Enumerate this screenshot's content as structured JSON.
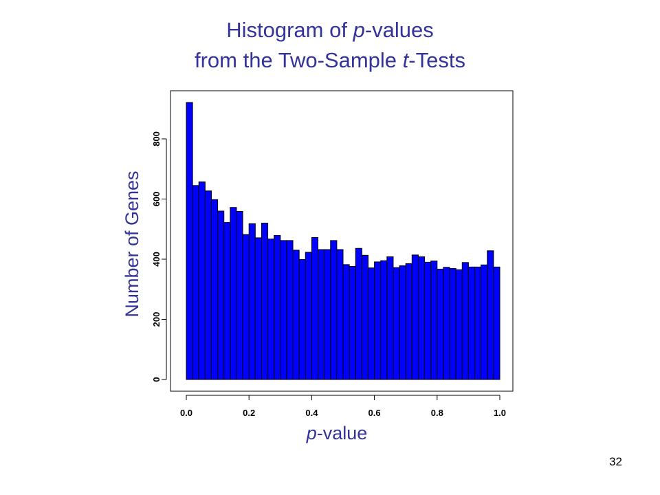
{
  "slide": {
    "title_part1_prefix": "Histogram of ",
    "title_part1_italic": "p",
    "title_part1_suffix": "-values",
    "title_part2_prefix": "from the Two-Sample ",
    "title_part2_italic": "t",
    "title_part2_suffix": "-Tests",
    "xlabel_italic": "p",
    "xlabel_suffix": "-value",
    "ylabel": "Number of Genes",
    "page_number": "32"
  },
  "colors": {
    "title": "#333399",
    "bar_fill": "#0000ff",
    "bar_stroke": "#000000"
  },
  "chart_data": {
    "type": "bar",
    "x_bin_start": 0.0,
    "x_bin_width": 0.02,
    "values": [
      921,
      645,
      657,
      627,
      598,
      560,
      522,
      572,
      559,
      482,
      518,
      471,
      520,
      467,
      479,
      462,
      462,
      430,
      399,
      423,
      472,
      432,
      432,
      462,
      432,
      382,
      376,
      436,
      413,
      371,
      391,
      395,
      408,
      372,
      378,
      385,
      414,
      408,
      390,
      394,
      367,
      373,
      369,
      365,
      389,
      374,
      374,
      381,
      428,
      374
    ],
    "xlim": [
      0.0,
      1.0
    ],
    "ylim": [
      0,
      950
    ],
    "x_ticks": [
      "0.0",
      "0.2",
      "0.4",
      "0.6",
      "0.8",
      "1.0"
    ],
    "y_ticks": [
      "0",
      "200",
      "400",
      "600",
      "800"
    ],
    "xlabel": "p-value",
    "ylabel": "Number of Genes",
    "grid": false,
    "legend": "none"
  }
}
